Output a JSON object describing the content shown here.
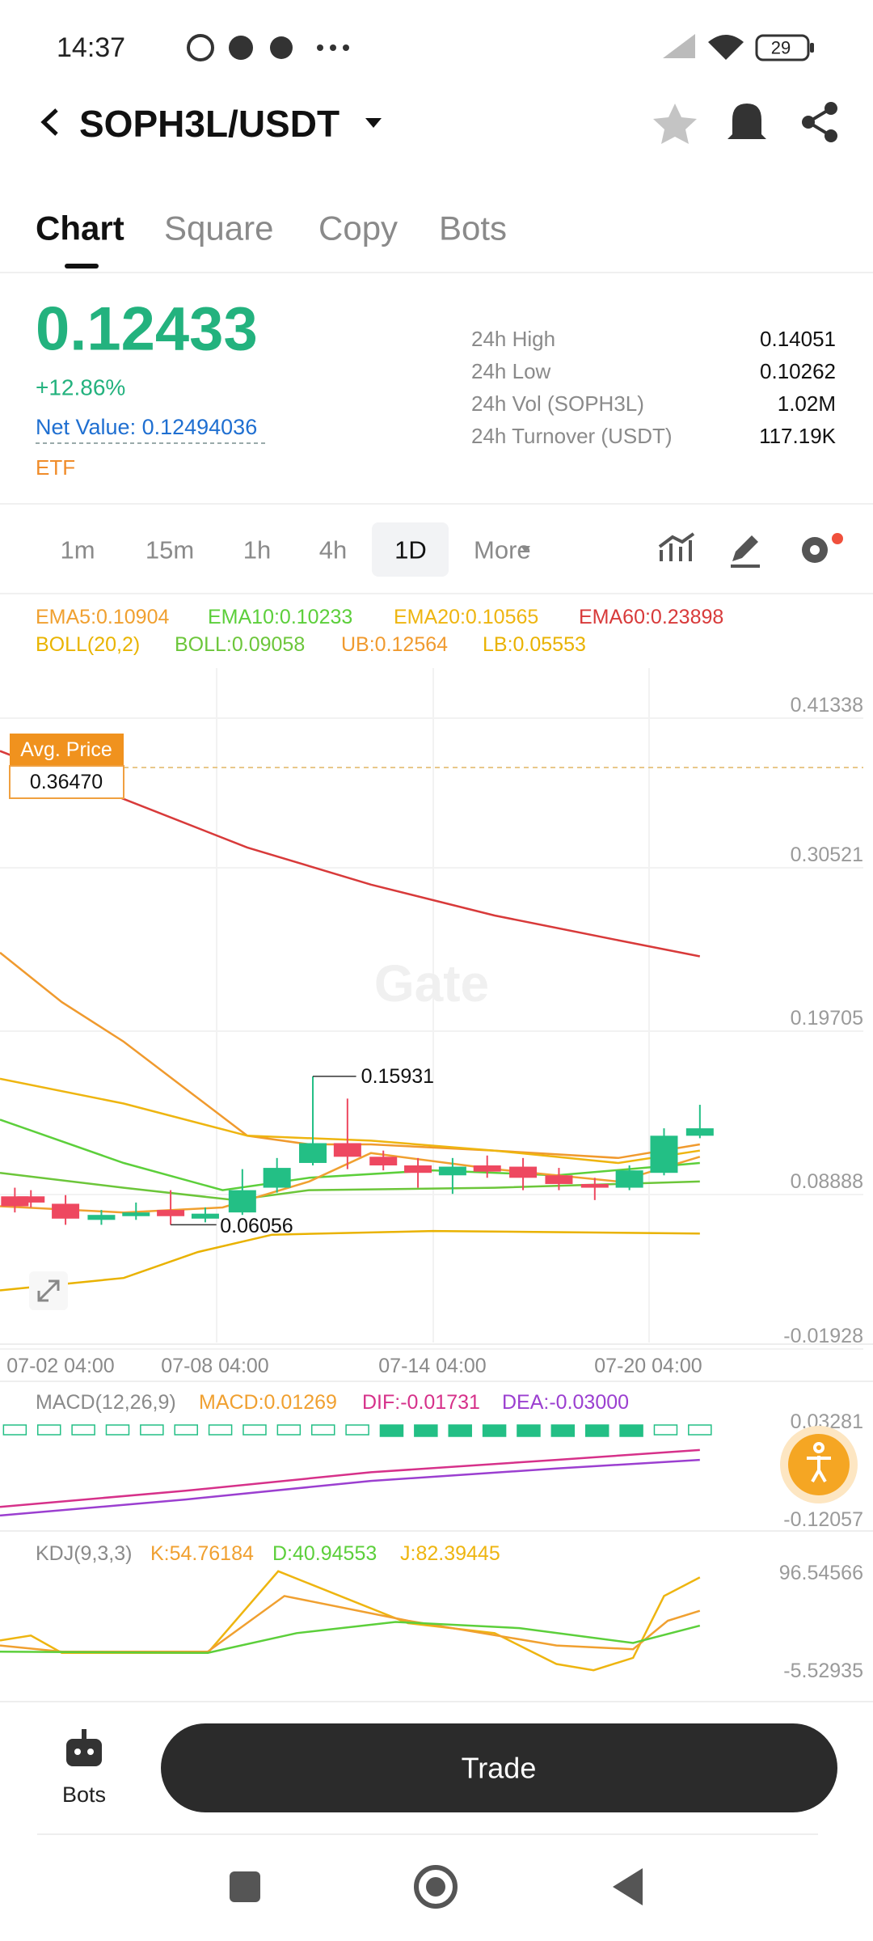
{
  "status_bar": {
    "time": "14:37",
    "battery": "29"
  },
  "header": {
    "title": "SOPH3L/USDT"
  },
  "tabs": [
    "Chart",
    "Square",
    "Copy",
    "Bots"
  ],
  "price": {
    "last": "0.12433",
    "change": "+12.86%",
    "net_value": "Net Value: 0.12494036",
    "badge": "ETF"
  },
  "stats": [
    {
      "label": "24h High",
      "value": "0.14051"
    },
    {
      "label": "24h Low",
      "value": "0.10262"
    },
    {
      "label": "24h Vol (SOPH3L)",
      "value": "1.02M"
    },
    {
      "label": "24h Turnover (USDT)",
      "value": "117.19K"
    }
  ],
  "intervals": [
    "1m",
    "15m",
    "1h",
    "4h",
    "1D",
    "More"
  ],
  "main_chart": {
    "indicators_row1": [
      "EMA5:0.10904",
      "EMA10:0.10233",
      "EMA20:0.10565",
      "EMA60:0.23898"
    ],
    "indicators_row2": [
      "BOLL(20,2)",
      "BOLL:0.09058",
      "UB:0.12564",
      "LB:0.05553"
    ],
    "y_labels": [
      "0.41338",
      "0.30521",
      "0.19705",
      "0.08888",
      "-0.01928"
    ],
    "avg_price_label": "Avg. Price",
    "avg_price": "0.36470",
    "high_marker": "0.15931",
    "low_marker": "0.06056",
    "watermark": "Gate",
    "x_labels": [
      "07-02 04:00",
      "07-08 04:00",
      "07-14 04:00",
      "07-20 04:00"
    ]
  },
  "macd": {
    "legend": [
      "MACD(12,26,9)",
      "MACD:0.01269",
      "DIF:-0.01731",
      "DEA:-0.03000"
    ],
    "y_labels": [
      "0.03281",
      "-0.12057"
    ]
  },
  "kdj": {
    "legend": [
      "KDJ(9,3,3)",
      "K:54.76184",
      "D:40.94553",
      "J:82.39445"
    ],
    "y_labels": [
      "96.54566",
      "-5.52935"
    ]
  },
  "bottom_bar": {
    "bots_label": "Bots",
    "trade_button": "Trade"
  }
}
